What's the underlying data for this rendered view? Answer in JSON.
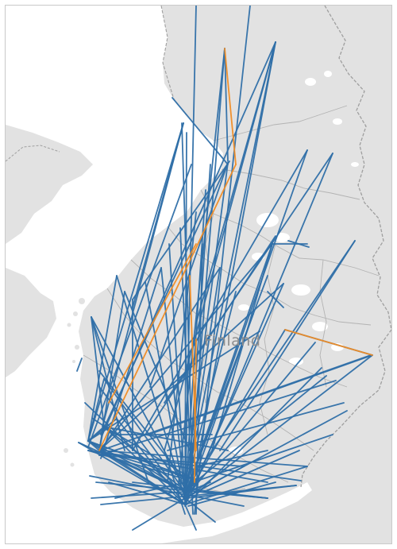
{
  "map": {
    "country_label": "Finland",
    "colors": {
      "land": "#e2e2e2",
      "water": "#ffffff",
      "border": "#9f9f9f",
      "route_default": "#2f6fa8",
      "route_highlight": "#f08c24"
    }
  }
}
